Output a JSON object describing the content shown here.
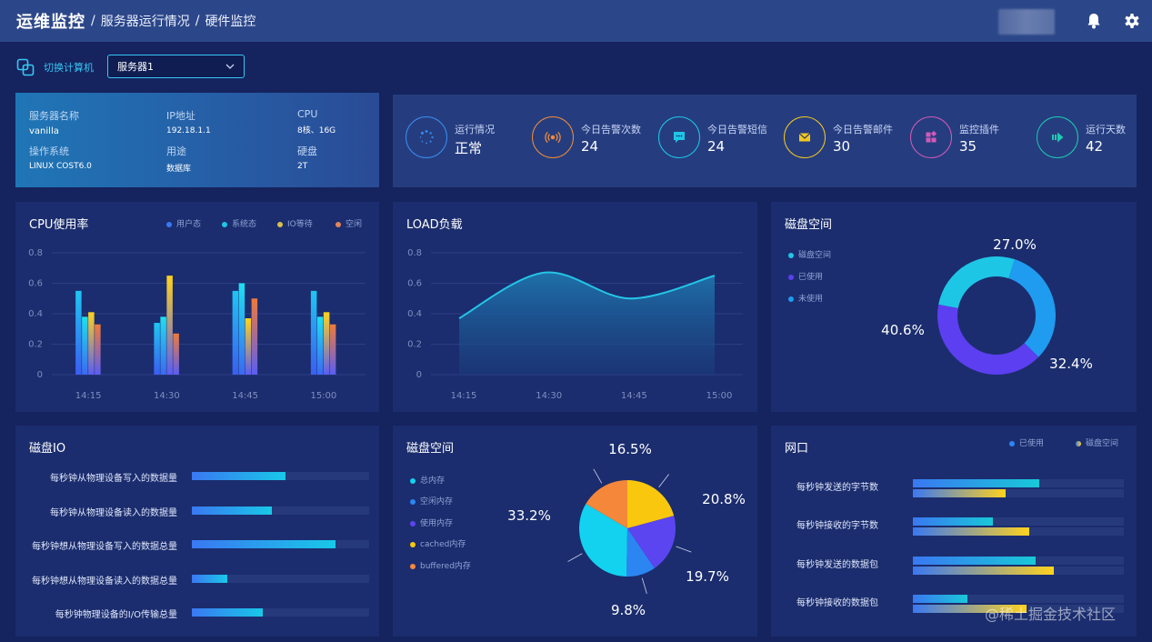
{
  "header": {
    "brand": "运维监控",
    "sep1": "/",
    "crumb1": "服务器运行情况",
    "sep2": "/",
    "crumb2": "硬件监控"
  },
  "switcher": {
    "label": "切换计算机",
    "selected": "服务器1"
  },
  "server_info": {
    "name_label": "服务器名称",
    "name_value": "vanilla",
    "ip_label": "IP地址",
    "ip_value": "192.18.1.1",
    "cpu_label": "CPU",
    "cpu_value": "8核、16G",
    "os_label": "操作系统",
    "os_value": "LINUX COST6.0",
    "use_label": "用途",
    "use_value": "数据库",
    "disk_label": "硬盘",
    "disk_value": "2T"
  },
  "stats": [
    {
      "label": "运行情况",
      "value": "正常",
      "color": "#3a8df0",
      "icon": "spinner-icon"
    },
    {
      "label": "今日告警次数",
      "value": "24",
      "color": "#f08a3a",
      "icon": "alarm-icon"
    },
    {
      "label": "今日告警短信",
      "value": "24",
      "color": "#1ec6e6",
      "icon": "message-icon"
    },
    {
      "label": "今日告警邮件",
      "value": "30",
      "color": "#f2c81e",
      "icon": "mail-icon"
    },
    {
      "label": "监控插件",
      "value": "35",
      "color": "#d15ab8",
      "icon": "plugin-icon"
    },
    {
      "label": "运行天数",
      "value": "42",
      "color": "#1fc9b0",
      "icon": "play-icon"
    }
  ],
  "cpu_panel": {
    "title": "CPU使用率",
    "legend": [
      "用户态",
      "系统态",
      "IO等待",
      "空闲"
    ]
  },
  "load_panel": {
    "title": "LOAD负载"
  },
  "disk_space_panel": {
    "title": "磁盘空间",
    "legend": [
      "磁盘空间",
      "已使用",
      "未使用"
    ]
  },
  "disk_io_panel": {
    "title": "磁盘IO",
    "rows": [
      {
        "label": "每秒钟从物理设备写入的数据量",
        "value": 0.53
      },
      {
        "label": "每秒钟从物理设备读入的数据量",
        "value": 0.45
      },
      {
        "label": "每秒钟想从物理设备写入的数据总量",
        "value": 0.81
      },
      {
        "label": "每秒钟想从物理设备读入的数据总量",
        "value": 0.2
      },
      {
        "label": "每秒钟物理设备的I/O传输总量",
        "value": 0.4
      }
    ]
  },
  "memory_panel": {
    "title": "磁盘空间",
    "legend": [
      "总内存",
      "空闲内存",
      "使用内存",
      "cached内存",
      "buffered内存"
    ]
  },
  "network_panel": {
    "title": "网口",
    "legend": [
      "已使用",
      "磁盘空间"
    ],
    "rows": [
      {
        "label": "每秒钟发送的字节数",
        "used": 0.6,
        "total": 0.44
      },
      {
        "label": "每秒钟接收的字节数",
        "used": 0.38,
        "total": 0.55
      },
      {
        "label": "每秒钟发送的数据包",
        "used": 0.58,
        "total": 0.67
      },
      {
        "label": "每秒钟接收的数据包",
        "used": 0.26,
        "total": 0.54
      }
    ]
  },
  "watermark": "@稀土掘金技术社区",
  "chart_data": [
    {
      "type": "bar",
      "title": "CPU使用率",
      "categories": [
        "14:15",
        "14:30",
        "14:45",
        "15:00"
      ],
      "ylim": [
        0,
        0.8
      ],
      "yticks": [
        "0",
        "0.2",
        "0.4",
        "0.6",
        "0.8"
      ],
      "series": [
        {
          "name": "用户态",
          "values": [
            0.55,
            0.34,
            0.55,
            0.55
          ],
          "color": "#3a78f2"
        },
        {
          "name": "系统态",
          "values": [
            0.38,
            0.38,
            0.6,
            0.38
          ],
          "color": "#1ec6e6"
        },
        {
          "name": "IO等待",
          "values": [
            0.41,
            0.65,
            0.37,
            0.41
          ],
          "color": "#f2c81e"
        },
        {
          "name": "空闲",
          "values": [
            0.33,
            0.27,
            0.5,
            0.33
          ],
          "color": "#f07a3a"
        }
      ],
      "grid": true,
      "legend": "top-right"
    },
    {
      "type": "area",
      "title": "LOAD负载",
      "categories": [
        "14:15",
        "14:30",
        "14:45",
        "15:00"
      ],
      "ylim": [
        0,
        0.8
      ],
      "yticks": [
        "0",
        "0.2",
        "0.4",
        "0.6",
        "0.8"
      ],
      "series": [
        {
          "values": [
            0.37,
            0.67,
            0.5,
            0.65
          ],
          "color": "#24c4e6"
        }
      ],
      "grid": true
    },
    {
      "type": "pie",
      "title": "磁盘空间",
      "donut": true,
      "slices": [
        {
          "name": "磁盘空间",
          "value": 27.0,
          "label": "27.0%",
          "color": "#1ec6e6"
        },
        {
          "name": "未使用",
          "value": 32.4,
          "label": "32.4%",
          "color": "#1f9bf0"
        },
        {
          "name": "已使用",
          "value": 40.6,
          "label": "40.6%",
          "color": "#5b3ff0"
        }
      ],
      "legend": "left"
    },
    {
      "type": "pie",
      "title": "磁盘空间",
      "slices": [
        {
          "name": "cached内存",
          "value": 20.8,
          "label": "20.8%",
          "color": "#f9c80e"
        },
        {
          "name": "使用内存",
          "value": 19.7,
          "label": "19.7%",
          "color": "#5b45f0"
        },
        {
          "name": "空闲内存",
          "value": 9.8,
          "label": "9.8%",
          "color": "#2b86f2"
        },
        {
          "name": "总内存",
          "value": 33.2,
          "label": "33.2%",
          "color": "#12d2f0"
        },
        {
          "name": "buffered内存",
          "value": 16.5,
          "label": "16.5%",
          "color": "#f4873a"
        }
      ],
      "legend": "left"
    }
  ]
}
